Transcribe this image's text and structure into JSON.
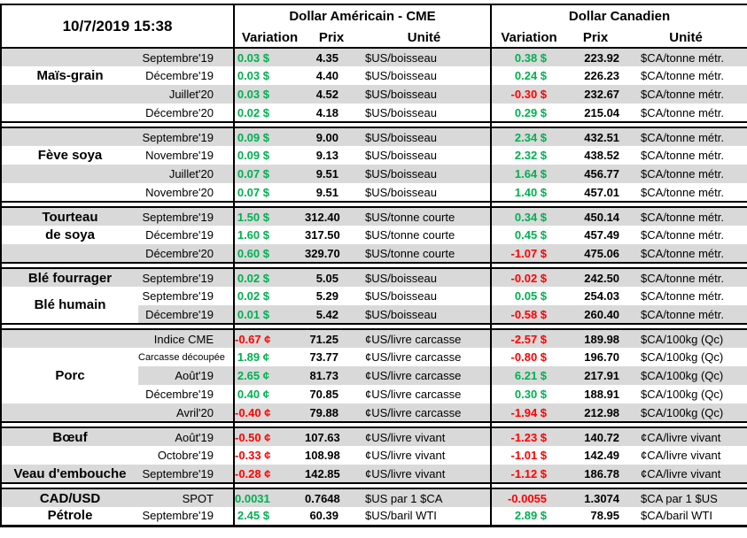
{
  "colors": {
    "positive": "#00B050",
    "negative": "#FF0000",
    "stripe": "#D9D9D9",
    "border": "#000000"
  },
  "chart_data": {
    "type": "table",
    "title": "10/7/2019 15:38",
    "column_groups": [
      "Dollar Américain - CME",
      "Dollar Canadien"
    ],
    "columns": [
      "Variation",
      "Prix",
      "Unité",
      "Variation",
      "Prix",
      "Unité"
    ],
    "groups": [
      {
        "id": "mais-grain",
        "rows": [
          {
            "label": "",
            "month": "Septembre'19",
            "us_var": "0.03 $",
            "us_prix": "4.35",
            "us_unit": "$US/boisseau",
            "ca_var": "0.38 $",
            "ca_prix": "223.92",
            "ca_unit": "$CA/tonne métr."
          },
          {
            "label": "Maïs-grain",
            "month": "Décembre'19",
            "us_var": "0.03 $",
            "us_prix": "4.40",
            "us_unit": "$US/boisseau",
            "ca_var": "0.24 $",
            "ca_prix": "226.23",
            "ca_unit": "$CA/tonne métr."
          },
          {
            "label": "",
            "month": "Juillet'20",
            "us_var": "0.03 $",
            "us_prix": "4.52",
            "us_unit": "$US/boisseau",
            "ca_var": "-0.30 $",
            "ca_prix": "232.67",
            "ca_unit": "$CA/tonne métr."
          },
          {
            "label": "",
            "month": "Décembre'20",
            "us_var": "0.02 $",
            "us_prix": "4.18",
            "us_unit": "$US/boisseau",
            "ca_var": "0.29 $",
            "ca_prix": "215.04",
            "ca_unit": "$CA/tonne métr."
          }
        ]
      },
      {
        "id": "feve-soya",
        "rows": [
          {
            "label": "",
            "month": "Septembre'19",
            "us_var": "0.09 $",
            "us_prix": "9.00",
            "us_unit": "$US/boisseau",
            "ca_var": "2.34 $",
            "ca_prix": "432.51",
            "ca_unit": "$CA/tonne métr."
          },
          {
            "label": "Fève soya",
            "month": "Novembre'19",
            "us_var": "0.09 $",
            "us_prix": "9.13",
            "us_unit": "$US/boisseau",
            "ca_var": "2.32 $",
            "ca_prix": "438.52",
            "ca_unit": "$CA/tonne métr."
          },
          {
            "label": "",
            "month": "Juillet'20",
            "us_var": "0.07 $",
            "us_prix": "9.51",
            "us_unit": "$US/boisseau",
            "ca_var": "1.64 $",
            "ca_prix": "456.77",
            "ca_unit": "$CA/tonne métr."
          },
          {
            "label": "",
            "month": "Novembre'20",
            "us_var": "0.07 $",
            "us_prix": "9.51",
            "us_unit": "$US/boisseau",
            "ca_var": "1.40 $",
            "ca_prix": "457.01",
            "ca_unit": "$CA/tonne métr."
          }
        ]
      },
      {
        "id": "tourteau-de-soya",
        "rows": [
          {
            "label": "Tourteau",
            "month": "Septembre'19",
            "us_var": "1.50 $",
            "us_prix": "312.40",
            "us_unit": "$US/tonne courte",
            "ca_var": "0.34 $",
            "ca_prix": "450.14",
            "ca_unit": "$CA/tonne métr."
          },
          {
            "label": "de soya",
            "month": "Décembre'19",
            "us_var": "1.60 $",
            "us_prix": "317.50",
            "us_unit": "$US/tonne courte",
            "ca_var": "0.45 $",
            "ca_prix": "457.49",
            "ca_unit": "$CA/tonne métr."
          },
          {
            "label": "",
            "month": "Décembre'20",
            "us_var": "0.60 $",
            "us_prix": "329.70",
            "us_unit": "$US/tonne courte",
            "ca_var": "-1.07 $",
            "ca_prix": "475.06",
            "ca_unit": "$CA/tonne métr."
          }
        ]
      },
      {
        "id": "ble",
        "rows": [
          {
            "label": "Blé fourrager",
            "month": "Septembre'19",
            "us_var": "0.02 $",
            "us_prix": "5.05",
            "us_unit": "$US/boisseau",
            "ca_var": "-0.02 $",
            "ca_prix": "242.50",
            "ca_unit": "$CA/tonne métr."
          },
          {
            "label": "Blé humain",
            "label_span": 2,
            "month": "Septembre'19",
            "us_var": "0.02 $",
            "us_prix": "5.29",
            "us_unit": "$US/boisseau",
            "ca_var": "0.05 $",
            "ca_prix": "254.03",
            "ca_unit": "$CA/tonne métr."
          },
          {
            "label_skip": true,
            "month": "Décembre'19",
            "us_var": "0.01 $",
            "us_prix": "5.42",
            "us_unit": "$US/boisseau",
            "ca_var": "-0.58 $",
            "ca_prix": "260.40",
            "ca_unit": "$CA/tonne métr."
          }
        ]
      },
      {
        "id": "porc",
        "rows": [
          {
            "label": "",
            "month": "Indice CME",
            "us_var": "-0.67 ¢",
            "us_prix": "71.25",
            "us_unit": "¢US/livre carcasse",
            "ca_var": "-2.57 $",
            "ca_prix": "189.98",
            "ca_unit": "$CA/100kg (Qc)"
          },
          {
            "label": "Porc",
            "label_span": 3,
            "month": "Carcasse découpée",
            "month_small": true,
            "us_var": "1.89 ¢",
            "us_prix": "73.77",
            "us_unit": "¢US/livre carcasse",
            "ca_var": "-0.80 $",
            "ca_prix": "196.70",
            "ca_unit": "$CA/100kg (Qc)"
          },
          {
            "label_skip": true,
            "month": "Août'19",
            "us_var": "2.65 ¢",
            "us_prix": "81.73",
            "us_unit": "¢US/livre carcasse",
            "ca_var": "6.21 $",
            "ca_prix": "217.91",
            "ca_unit": "$CA/100kg (Qc)"
          },
          {
            "label_skip": true,
            "month": "Décembre'19",
            "us_var": "0.40 ¢",
            "us_prix": "70.85",
            "us_unit": "¢US/livre carcasse",
            "ca_var": "0.30 $",
            "ca_prix": "188.91",
            "ca_unit": "$CA/100kg (Qc)"
          },
          {
            "label": "",
            "month": "Avril'20",
            "us_var": "-0.40 ¢",
            "us_prix": "79.88",
            "us_unit": "¢US/livre carcasse",
            "ca_var": "-1.94 $",
            "ca_prix": "212.98",
            "ca_unit": "$CA/100kg (Qc)"
          }
        ]
      },
      {
        "id": "boeuf-veau",
        "rows": [
          {
            "label": "Bœuf",
            "month": "Août'19",
            "us_var": "-0.50 ¢",
            "us_prix": "107.63",
            "us_unit": "¢US/livre vivant",
            "ca_var": "-1.23 $",
            "ca_prix": "140.72",
            "ca_unit": "¢CA/livre vivant"
          },
          {
            "label": "",
            "month": "Octobre'19",
            "us_var": "-0.33 ¢",
            "us_prix": "108.98",
            "us_unit": "¢US/livre vivant",
            "ca_var": "-1.01 $",
            "ca_prix": "142.49",
            "ca_unit": "¢CA/livre vivant"
          },
          {
            "label": "Veau d'embouche",
            "month": "Septembre'19",
            "us_var": "-0.28 ¢",
            "us_prix": "142.85",
            "us_unit": "¢US/livre vivant",
            "ca_var": "-1.12 $",
            "ca_prix": "186.78",
            "ca_unit": "¢CA/livre vivant"
          }
        ]
      },
      {
        "id": "cad-petrole",
        "rows": [
          {
            "label": "CAD/USD",
            "month": "SPOT",
            "us_var": "0.0031",
            "us_prix": "0.7648",
            "us_unit": "$US par 1 $CA",
            "ca_var": "-0.0055",
            "ca_prix": "1.3074",
            "ca_unit": "$CA par 1 $US"
          },
          {
            "label": "Pétrole",
            "month": "Septembre'19",
            "us_var": "2.45 $",
            "us_prix": "60.39",
            "us_unit": "$US/baril WTI",
            "ca_var": "2.89 $",
            "ca_prix": "78.95",
            "ca_unit": "$CA/baril WTI"
          }
        ]
      }
    ]
  }
}
